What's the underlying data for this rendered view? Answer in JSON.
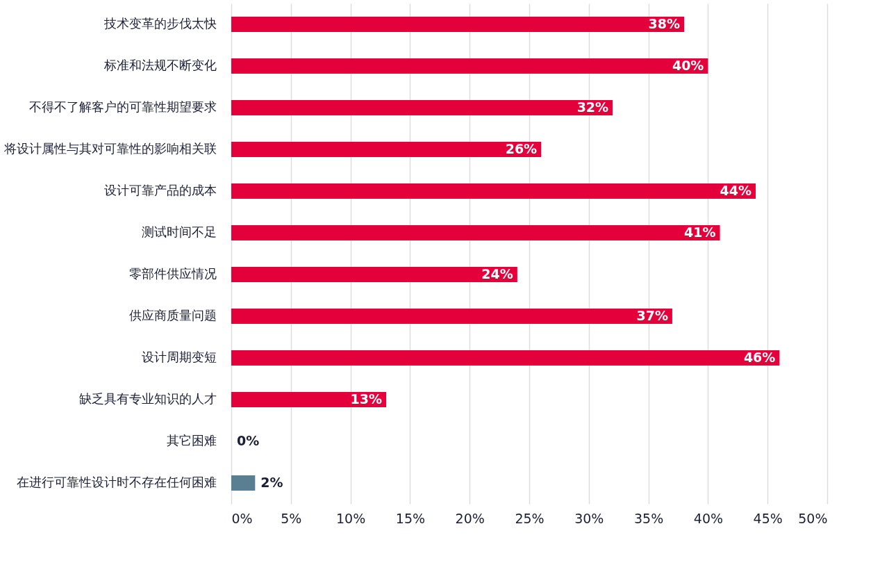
{
  "chart_data": {
    "type": "bar",
    "orientation": "horizontal",
    "categories": [
      "技术变革的步伐太快",
      "标准和法规不断变化",
      "不得不了解客户的可靠性期望要求",
      "将设计属性与其对可靠性的影响相关联",
      "设计可靠产品的成本",
      "测试时间不足",
      "零部件供应情况",
      "供应商质量问题",
      "设计周期变短",
      "缺乏具有专业知识的人才",
      "其它困难",
      "在进行可靠性设计时不存在任何困难"
    ],
    "values": [
      38,
      40,
      32,
      26,
      44,
      41,
      24,
      37,
      46,
      13,
      0,
      2
    ],
    "value_labels": [
      "38%",
      "40%",
      "32%",
      "26%",
      "44%",
      "41%",
      "24%",
      "37%",
      "46%",
      "13%",
      "0%",
      "2%"
    ],
    "colors": [
      "#e4003a",
      "#e4003a",
      "#e4003a",
      "#e4003a",
      "#e4003a",
      "#e4003a",
      "#e4003a",
      "#e4003a",
      "#e4003a",
      "#e4003a",
      "#e4003a",
      "#5b7f92"
    ],
    "xlim": [
      0,
      50
    ],
    "xticks": [
      {
        "value": 0,
        "label": "0%"
      },
      {
        "value": 5,
        "label": "5%"
      },
      {
        "value": 10,
        "label": "10%"
      },
      {
        "value": 15,
        "label": "15%"
      },
      {
        "value": 20,
        "label": "20%"
      },
      {
        "value": 25,
        "label": "25%"
      },
      {
        "value": 30,
        "label": "30%"
      },
      {
        "value": 35,
        "label": "35%"
      },
      {
        "value": 40,
        "label": "40%"
      },
      {
        "value": 45,
        "label": "45%"
      },
      {
        "value": 50,
        "label": "50%"
      }
    ],
    "grid": "x"
  }
}
